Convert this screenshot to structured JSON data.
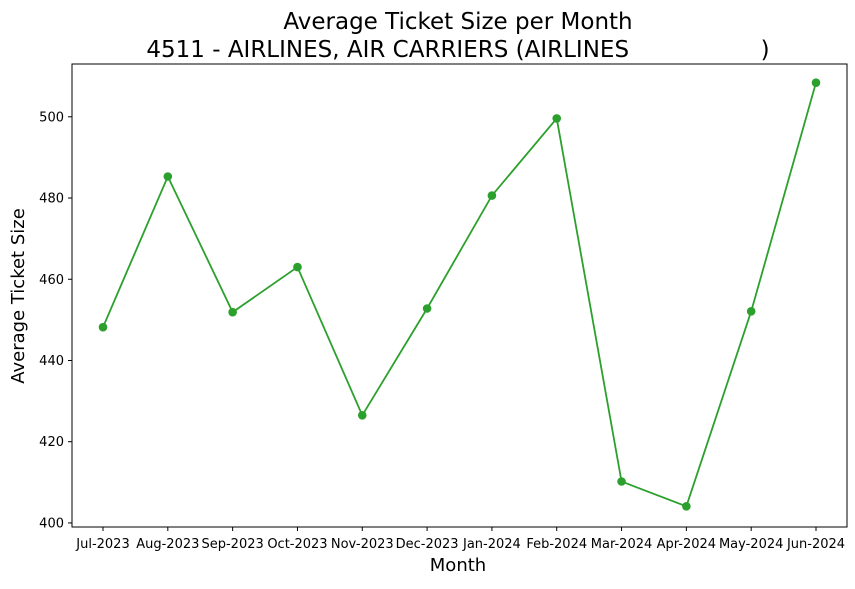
{
  "chart_data": {
    "type": "line",
    "title": "Average Ticket Size per Month",
    "subtitle": "4511 - AIRLINES, AIR CARRIERS (AIRLINES                  )",
    "xlabel": "Month",
    "ylabel": "Average Ticket Size",
    "categories": [
      "Jul-2023",
      "Aug-2023",
      "Sep-2023",
      "Oct-2023",
      "Nov-2023",
      "Dec-2023",
      "Jan-2024",
      "Feb-2024",
      "Mar-2024",
      "Apr-2024",
      "May-2024",
      "Jun-2024"
    ],
    "series": [
      {
        "values": [
          448.2,
          485.3,
          451.9,
          463.0,
          426.5,
          452.8,
          480.6,
          499.6,
          410.2,
          404.1,
          452.1,
          508.4
        ],
        "color": "#2ca02c"
      }
    ],
    "yticks": [
      400,
      420,
      440,
      460,
      480,
      500
    ],
    "ylim": [
      399,
      513
    ],
    "grid": false,
    "legend": "none"
  }
}
